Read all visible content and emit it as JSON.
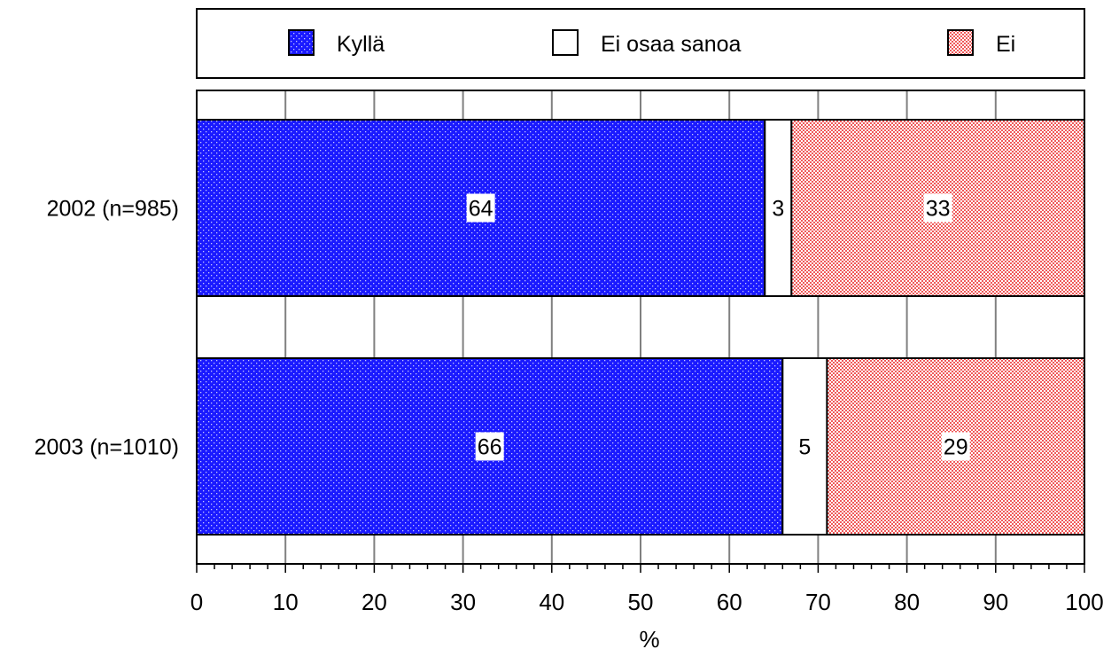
{
  "chart_data": {
    "type": "bar",
    "orientation": "horizontal",
    "stacked": true,
    "categories": [
      "2002 (n=985)",
      "2003 (n=1010)"
    ],
    "series": [
      {
        "name": "Kyllä",
        "values": [
          64,
          66
        ],
        "color": "#1a1aff",
        "pattern": "dots"
      },
      {
        "name": "Ei osaa sanoa",
        "values": [
          3,
          5
        ],
        "color": "#ffffff",
        "pattern": "none"
      },
      {
        "name": "Ei",
        "values": [
          33,
          29
        ],
        "color": "#f05a5a",
        "pattern": "checker"
      }
    ],
    "xlabel": "%",
    "xlim": [
      0,
      100
    ],
    "xticks": [
      "0",
      "10",
      "20",
      "30",
      "40",
      "50",
      "60",
      "70",
      "80",
      "90",
      "100"
    ],
    "grid": true,
    "legend_position": "top",
    "data_labels": true
  }
}
